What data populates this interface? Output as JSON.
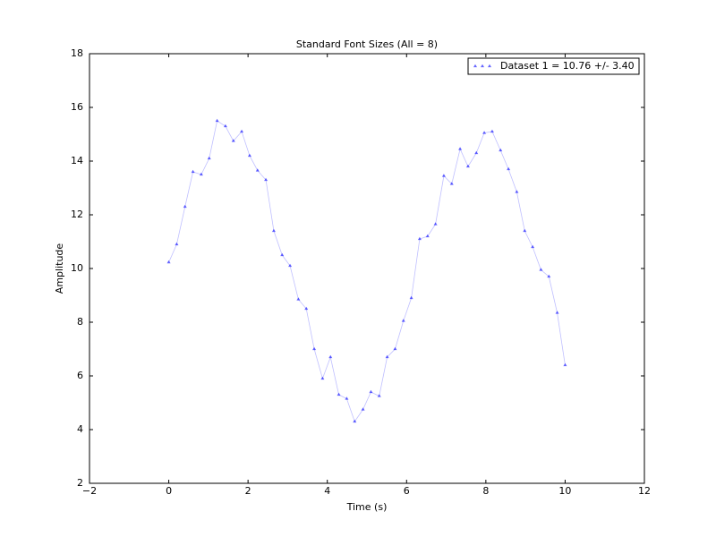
{
  "chart_data": {
    "type": "line",
    "title": "Standard Font Sizes (All = 8)",
    "x_label": "Time (s)",
    "y_label": "Amplitude",
    "x": [
      0,
      0.2,
      0.41,
      0.61,
      0.82,
      1.02,
      1.22,
      1.43,
      1.63,
      1.84,
      2.04,
      2.24,
      2.45,
      2.65,
      2.86,
      3.06,
      3.27,
      3.47,
      3.67,
      3.88,
      4.08,
      4.29,
      4.49,
      4.69,
      4.9,
      5.1,
      5.31,
      5.51,
      5.71,
      5.92,
      6.12,
      6.33,
      6.53,
      6.73,
      6.94,
      7.14,
      7.35,
      7.55,
      7.76,
      7.96,
      8.16,
      8.37,
      8.57,
      8.78,
      8.98,
      9.18,
      9.39,
      9.59,
      9.8,
      10
    ],
    "series": [
      {
        "name": "Dataset 1 = 10.76 +/- 3.40",
        "color": "#0000ff",
        "values": [
          10.23,
          10.9,
          12.3,
          13.6,
          13.5,
          14.1,
          15.5,
          15.3,
          14.75,
          15.1,
          14.2,
          13.65,
          13.3,
          11.4,
          10.5,
          10.1,
          8.85,
          8.5,
          7.0,
          5.9,
          6.7,
          5.3,
          5.15,
          4.3,
          4.75,
          5.4,
          5.25,
          6.7,
          7.0,
          8.05,
          8.9,
          11.1,
          11.2,
          11.65,
          13.45,
          13.15,
          14.45,
          13.8,
          14.3,
          15.05,
          15.1,
          14.4,
          13.7,
          12.85,
          11.4,
          10.8,
          9.95,
          9.7,
          8.35,
          6.4
        ]
      }
    ],
    "xlim": [
      -2,
      12
    ],
    "ylim": [
      2,
      18
    ],
    "xticks": [
      {
        "value": -2,
        "label": "−2"
      },
      0,
      2,
      4,
      6,
      8,
      10,
      12
    ],
    "yticks": [
      2,
      4,
      6,
      8,
      10,
      12,
      14,
      16,
      18
    ],
    "legend": "upper right",
    "grid": false
  }
}
